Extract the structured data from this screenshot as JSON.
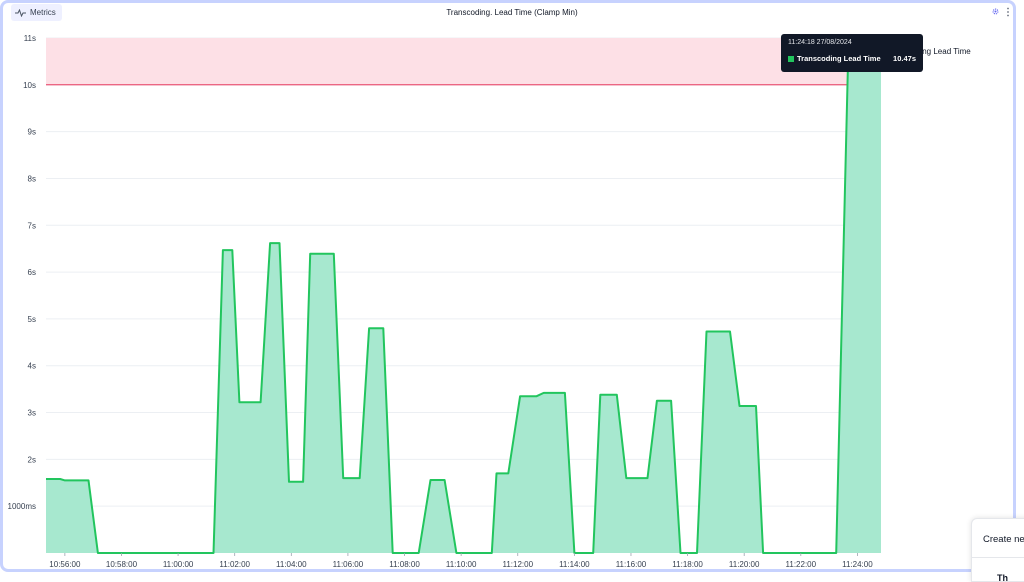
{
  "header": {
    "metrics_label": "Metrics",
    "title": "Transcoding. Lead Time (Clamp Min)",
    "metrics_icon": "pulse-icon",
    "settings_icon": "gear-icon",
    "more_icon": "more-vertical-icon"
  },
  "chart_data": {
    "type": "area",
    "title": "Transcoding. Lead Time (Clamp Min)",
    "y_unit": "seconds",
    "ylim": [
      0,
      11
    ],
    "y_ticks": [
      {
        "value": 1,
        "label": "1000ms"
      },
      {
        "value": 2,
        "label": "2s"
      },
      {
        "value": 3,
        "label": "3s"
      },
      {
        "value": 4,
        "label": "4s"
      },
      {
        "value": 5,
        "label": "5s"
      },
      {
        "value": 6,
        "label": "6s"
      },
      {
        "value": 7,
        "label": "7s"
      },
      {
        "value": 8,
        "label": "8s"
      },
      {
        "value": 9,
        "label": "9s"
      },
      {
        "value": 10,
        "label": "10s"
      },
      {
        "value": 11,
        "label": "11s"
      }
    ],
    "x_ticks": [
      "10:56:00",
      "10:58:00",
      "11:00:00",
      "11:02:00",
      "11:04:00",
      "11:06:00",
      "11:08:00",
      "11:10:00",
      "11:12:00",
      "11:14:00",
      "11:16:00",
      "11:18:00",
      "11:20:00",
      "11:22:00",
      "11:24:00"
    ],
    "x_range": [
      "10:55:20",
      "11:24:50"
    ],
    "threshold": {
      "from": 10,
      "to": 11,
      "color": "#fde0e6",
      "line_color": "#e11d48"
    },
    "grid": true,
    "series": [
      {
        "name": "Transcoding Lead Time",
        "color": "#22c55e",
        "fill": "#a7e8cf",
        "points": [
          [
            "10:55:20",
            1.58
          ],
          [
            "10:55:50",
            1.58
          ],
          [
            "10:56:00",
            1.55
          ],
          [
            "10:56:50",
            1.55
          ],
          [
            "10:57:10",
            0
          ],
          [
            "11:01:15",
            0
          ],
          [
            "11:01:35",
            6.47
          ],
          [
            "11:01:55",
            6.47
          ],
          [
            "11:02:10",
            3.22
          ],
          [
            "11:02:55",
            3.22
          ],
          [
            "11:03:15",
            6.62
          ],
          [
            "11:03:35",
            6.62
          ],
          [
            "11:03:55",
            1.52
          ],
          [
            "11:04:25",
            1.52
          ],
          [
            "11:04:40",
            6.39
          ],
          [
            "11:05:30",
            6.39
          ],
          [
            "11:05:50",
            1.6
          ],
          [
            "11:06:25",
            1.6
          ],
          [
            "11:06:45",
            4.8
          ],
          [
            "11:07:15",
            4.8
          ],
          [
            "11:07:35",
            0
          ],
          [
            "11:08:30",
            0
          ],
          [
            "11:08:55",
            1.56
          ],
          [
            "11:09:25",
            1.56
          ],
          [
            "11:09:50",
            0
          ],
          [
            "11:11:05",
            0
          ],
          [
            "11:11:15",
            1.7
          ],
          [
            "11:11:40",
            1.7
          ],
          [
            "11:12:05",
            3.35
          ],
          [
            "11:12:40",
            3.35
          ],
          [
            "11:12:55",
            3.42
          ],
          [
            "11:13:40",
            3.42
          ],
          [
            "11:14:00",
            0
          ],
          [
            "11:14:40",
            0
          ],
          [
            "11:14:55",
            3.38
          ],
          [
            "11:15:30",
            3.38
          ],
          [
            "11:15:50",
            1.6
          ],
          [
            "11:16:35",
            1.6
          ],
          [
            "11:16:55",
            3.25
          ],
          [
            "11:17:25",
            3.25
          ],
          [
            "11:17:45",
            0
          ],
          [
            "11:18:20",
            0
          ],
          [
            "11:18:40",
            4.73
          ],
          [
            "11:19:30",
            4.73
          ],
          [
            "11:19:50",
            3.14
          ],
          [
            "11:20:25",
            3.14
          ],
          [
            "11:20:40",
            0
          ],
          [
            "11:23:15",
            0
          ],
          [
            "11:23:40",
            10.47
          ],
          [
            "11:24:50",
            10.47
          ]
        ]
      }
    ],
    "tooltip": {
      "time": "11:24:18 27/08/2024",
      "series": "Transcoding Lead Time",
      "value": "10.47s"
    }
  },
  "legend": {
    "partial_text": "ding Lead Time"
  },
  "create_card": {
    "title": "Create ne",
    "subtitle": "Th"
  }
}
